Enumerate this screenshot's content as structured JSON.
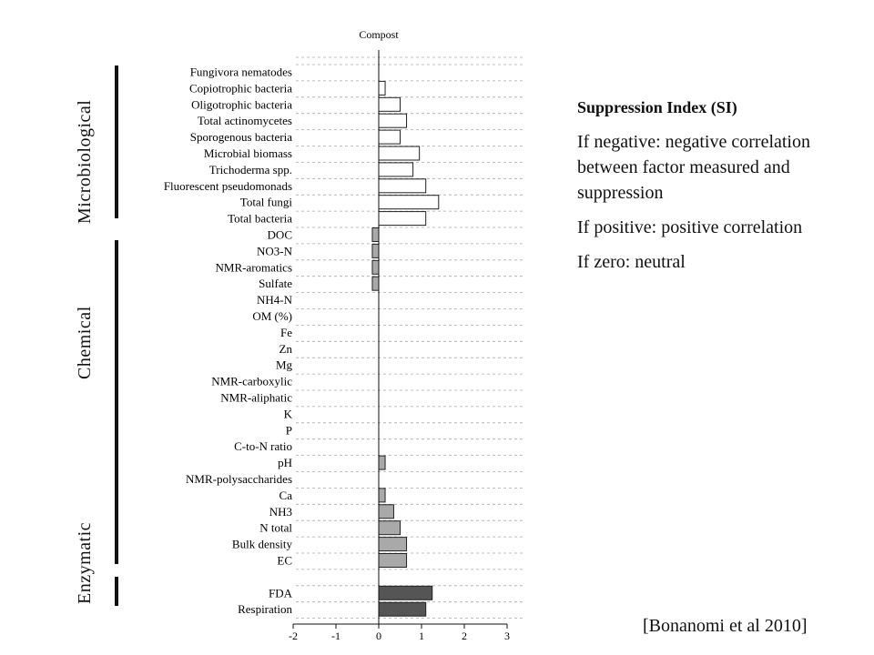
{
  "chart_data": {
    "type": "bar",
    "orientation": "horizontal",
    "title": "Compost",
    "xlim": [
      -2,
      3
    ],
    "xticks": [
      "-2",
      "-1",
      "0",
      "1",
      "2",
      "3"
    ],
    "grid": "dashed horizontal lines",
    "groups": [
      {
        "name": "Microbiological",
        "color": "#ffffff",
        "categories": [
          "Fungivora nematodes",
          "Copiotrophic bacteria",
          "Oligotrophic bacteria",
          "Total actinomycetes",
          "Sporogenous bacteria",
          "Microbial biomass",
          "Trichoderma spp.",
          "Fluorescent pseudomonads",
          "Total fungi",
          "Total bacteria"
        ],
        "values": [
          0,
          0.15,
          0.5,
          0.65,
          0.5,
          0.95,
          0.8,
          1.1,
          1.4,
          1.1
        ]
      },
      {
        "name": "Chemical",
        "color": "#a9a9a9",
        "categories": [
          "DOC",
          "NO3-N",
          "NMR-aromatics",
          "Sulfate",
          "NH4-N",
          "OM (%)",
          "Fe",
          "Zn",
          "Mg",
          "NMR-carboxylic",
          "NMR-aliphatic",
          "K",
          "P",
          "C-to-N ratio",
          "pH",
          "NMR-polysaccharides",
          "Ca",
          "NH3",
          "N total",
          "Bulk density",
          "EC"
        ],
        "values": [
          -0.15,
          -0.15,
          -0.15,
          -0.15,
          0,
          0,
          0,
          0,
          0,
          0,
          0,
          0,
          0,
          0,
          0.15,
          0,
          0.15,
          0.35,
          0.5,
          0.65,
          0.65
        ]
      },
      {
        "name": "Enzymatic",
        "color": "#555555",
        "categories": [
          "FDA",
          "Respiration"
        ],
        "values": [
          1.25,
          1.1
        ]
      }
    ]
  },
  "side_labels": [
    "Microbiological",
    "Chemical",
    "Enzymatic"
  ],
  "panel": {
    "title": "Suppression Index (SI)",
    "negative": "If negative: negative correlation between factor measured and suppression",
    "positive": "If positive: positive correlation",
    "zero": "If zero: neutral"
  },
  "citation": "[Bonanomi et al 2010]"
}
